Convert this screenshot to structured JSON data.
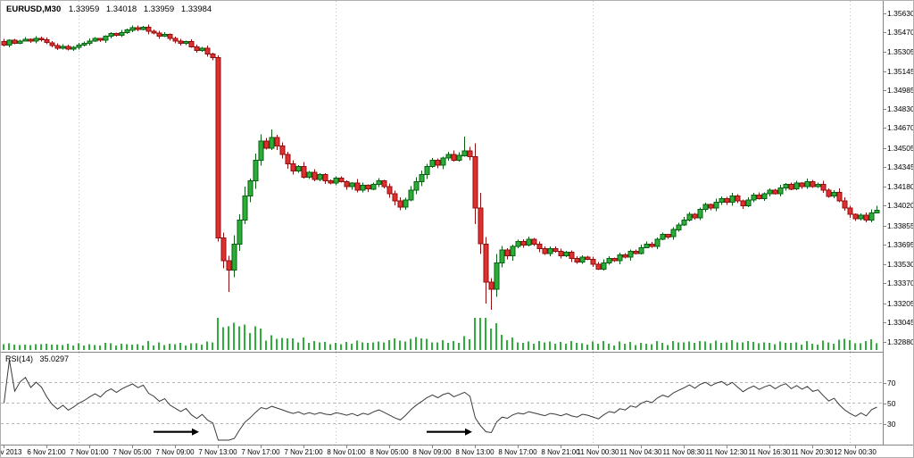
{
  "header": {
    "symbol_timeframe": "EURUSD,M30",
    "open": "1.33959",
    "high": "1.34018",
    "low": "1.33959",
    "close": "1.33984"
  },
  "indicator": {
    "label": "RSI(14)",
    "value": "35.0297"
  },
  "chart_data": {
    "type": "candlestick",
    "symbol": "EURUSD",
    "timeframe": "M30",
    "title": "EURUSD,M30 1.33959 1.34018 1.33959 1.33984",
    "last_bar_ohlc": {
      "open": 1.33959,
      "high": 1.34018,
      "low": 1.33959,
      "close": 1.33984
    },
    "price_axis": {
      "decimals": 5,
      "labels": [
        1.3563,
        1.3547,
        1.35305,
        1.35145,
        1.34985,
        1.3483,
        1.3467,
        1.34505,
        1.34345,
        1.3418,
        1.3402,
        1.33855,
        1.33695,
        1.3353,
        1.3337,
        1.33205,
        1.33045,
        1.3288
      ]
    },
    "time_axis": {
      "labels": [
        {
          "bar": 0,
          "text": "6 Nov 2013"
        },
        {
          "bar": 8,
          "text": "6 Nov 21:00"
        },
        {
          "bar": 16,
          "text": "7 Nov 01:00"
        },
        {
          "bar": 24,
          "text": "7 Nov 05:00"
        },
        {
          "bar": 32,
          "text": "7 Nov 09:00"
        },
        {
          "bar": 40,
          "text": "7 Nov 13:00"
        },
        {
          "bar": 48,
          "text": "7 Nov 17:00"
        },
        {
          "bar": 56,
          "text": "7 Nov 21:00"
        },
        {
          "bar": 64,
          "text": "8 Nov 01:00"
        },
        {
          "bar": 72,
          "text": "8 Nov 05:00"
        },
        {
          "bar": 80,
          "text": "8 Nov 09:00"
        },
        {
          "bar": 88,
          "text": "8 Nov 13:00"
        },
        {
          "bar": 96,
          "text": "8 Nov 17:00"
        },
        {
          "bar": 104,
          "text": "8 Nov 21:00"
        },
        {
          "bar": 111,
          "text": "11 Nov 00:30"
        },
        {
          "bar": 119,
          "text": "11 Nov 04:30"
        },
        {
          "bar": 127,
          "text": "11 Nov 08:30"
        },
        {
          "bar": 135,
          "text": "11 Nov 12:30"
        },
        {
          "bar": 143,
          "text": "11 Nov 16:30"
        },
        {
          "bar": 151,
          "text": "11 Nov 20:30"
        },
        {
          "bar": 159,
          "text": "12 Nov 00:30"
        }
      ]
    },
    "day_boundary_bars": [
      14,
      62,
      110,
      158
    ],
    "candles": {
      "count": 164,
      "seed": 1319,
      "first_open": 1.35395,
      "closes": [
        1.35365,
        1.35405,
        1.3538,
        1.354,
        1.35415,
        1.354,
        1.3542,
        1.3541,
        1.35385,
        1.3536,
        1.3534,
        1.35355,
        1.3533,
        1.35345,
        1.35365,
        1.3538,
        1.354,
        1.3542,
        1.35405,
        1.3544,
        1.3546,
        1.35445,
        1.3547,
        1.3549,
        1.3551,
        1.35495,
        1.35515,
        1.3548,
        1.35465,
        1.3544,
        1.35455,
        1.3542,
        1.354,
        1.3538,
        1.35395,
        1.3535,
        1.3532,
        1.3534,
        1.3529,
        1.3526,
        1.3375,
        1.3356,
        1.3348,
        1.337,
        1.339,
        1.341,
        1.3423,
        1.344,
        1.3456,
        1.345,
        1.3459,
        1.3452,
        1.3445,
        1.3437,
        1.3431,
        1.3435,
        1.3426,
        1.343,
        1.3424,
        1.3428,
        1.3423,
        1.3421,
        1.3425,
        1.3422,
        1.3418,
        1.3421,
        1.3415,
        1.3419,
        1.3416,
        1.342,
        1.3423,
        1.3418,
        1.3412,
        1.3406,
        1.3401,
        1.3407,
        1.3415,
        1.3422,
        1.3428,
        1.3435,
        1.344,
        1.3436,
        1.3442,
        1.3445,
        1.344,
        1.3444,
        1.3448,
        1.3443,
        1.34,
        1.337,
        1.3338,
        1.3332,
        1.3354,
        1.3365,
        1.336,
        1.3368,
        1.3372,
        1.3369,
        1.3374,
        1.337,
        1.3366,
        1.3362,
        1.3366,
        1.3364,
        1.336,
        1.3363,
        1.3358,
        1.3355,
        1.3359,
        1.3357,
        1.3353,
        1.3349,
        1.3354,
        1.3358,
        1.3356,
        1.3361,
        1.3359,
        1.3364,
        1.3362,
        1.3367,
        1.337,
        1.3368,
        1.3374,
        1.3378,
        1.3376,
        1.3382,
        1.3386,
        1.339,
        1.3395,
        1.3392,
        1.3399,
        1.3403,
        1.34,
        1.3405,
        1.3408,
        1.3405,
        1.341,
        1.3406,
        1.3402,
        1.3407,
        1.3411,
        1.3408,
        1.3412,
        1.3415,
        1.3412,
        1.3417,
        1.342,
        1.3416,
        1.3421,
        1.3418,
        1.3422,
        1.3418,
        1.342,
        1.3415,
        1.341,
        1.3413,
        1.3406,
        1.34,
        1.3395,
        1.3391,
        1.3394,
        1.339,
        1.33959,
        1.33984
      ],
      "wick_overrides": {
        "40": {
          "high": 1.3528,
          "low": 1.3372
        },
        "42": {
          "low": 1.333
        },
        "50": {
          "high": 1.3466
        },
        "86": {
          "high": 1.346
        },
        "90": {
          "low": 1.332
        },
        "91": {
          "low": 1.3315
        },
        "163": {
          "high": 1.34018,
          "low": 1.33959
        }
      }
    },
    "volume": {
      "note": "tick volume, height proportional to bar range"
    },
    "rsi": {
      "period": 14,
      "levels": [
        70,
        50,
        30
      ],
      "axis_labels": [
        "70",
        "50",
        "30"
      ],
      "last_value": 35.0297,
      "oversold_arrows": [
        {
          "from_bar": 28,
          "to_bar": 36.5,
          "level": 22
        },
        {
          "from_bar": 79,
          "to_bar": 87.5,
          "level": 22
        }
      ]
    },
    "colors": {
      "up": "#2bae38",
      "up_border": "#0a5f14",
      "down": "#df3030",
      "down_border": "#8e1111",
      "volume": "#2fae3a",
      "rsi_line": "#3a3a3a",
      "grid": "#c2c2c2",
      "level_dash": "#b5b5b5",
      "separator": "#848484",
      "axis_text": "#000000",
      "arrow": "#000000",
      "background": "#ffffff"
    }
  }
}
